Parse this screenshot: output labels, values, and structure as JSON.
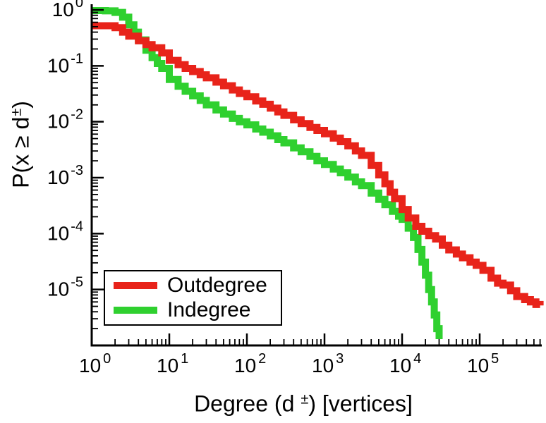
{
  "chart_data": {
    "type": "line",
    "subtype": "ccdf-step-loglog",
    "title": "",
    "xlabel_parts": {
      "pre": "Degree (d",
      "sup": "±",
      "post": ") [vertices]"
    },
    "ylabel_parts": {
      "pre": "P(x ≥ d",
      "sup": "±",
      "post": ")"
    },
    "tick_base": "10",
    "grid": false,
    "x_axis": {
      "scale": "log",
      "log_min": 0,
      "log_max": 5.8,
      "tick_exponents": [
        0,
        1,
        2,
        3,
        4,
        5
      ]
    },
    "y_axis": {
      "scale": "log",
      "log_decades": 6,
      "ylim": [
        1e-06,
        1
      ],
      "tick_exponents": [
        0,
        -1,
        -2,
        -3,
        -4,
        -5
      ]
    },
    "legend": {
      "position": "lower-left"
    },
    "series": [
      {
        "name": "Outdegree",
        "color": "#e8231a",
        "points": [
          [
            1,
            0.52
          ],
          [
            2,
            0.48
          ],
          [
            2.5,
            0.4
          ],
          [
            3,
            0.34
          ],
          [
            4,
            0.28
          ],
          [
            5,
            0.24
          ],
          [
            6,
            0.21
          ],
          [
            8,
            0.17
          ],
          [
            10,
            0.125
          ],
          [
            13,
            0.105
          ],
          [
            16,
            0.09
          ],
          [
            20,
            0.079
          ],
          [
            25,
            0.069
          ],
          [
            30,
            0.061
          ],
          [
            40,
            0.051
          ],
          [
            50,
            0.044
          ],
          [
            65,
            0.037
          ],
          [
            80,
            0.032
          ],
          [
            100,
            0.028
          ],
          [
            130,
            0.0235
          ],
          [
            160,
            0.0205
          ],
          [
            200,
            0.0175
          ],
          [
            250,
            0.015
          ],
          [
            300,
            0.013
          ],
          [
            400,
            0.0108
          ],
          [
            500,
            0.0093
          ],
          [
            650,
            0.0079
          ],
          [
            800,
            0.007
          ],
          [
            1000,
            0.0061
          ],
          [
            1300,
            0.0051
          ],
          [
            1600,
            0.0044
          ],
          [
            2000,
            0.0037
          ],
          [
            2500,
            0.003
          ],
          [
            3000,
            0.0025
          ],
          [
            4000,
            0.00165
          ],
          [
            5000,
            0.00112
          ],
          [
            6000,
            0.00078
          ],
          [
            7000,
            0.00055
          ],
          [
            8000,
            0.00042
          ],
          [
            10000,
            0.00027
          ],
          [
            12000,
            0.00019
          ],
          [
            15000,
            0.000135
          ],
          [
            18000,
            0.00011
          ],
          [
            22000,
            9.2e-05
          ],
          [
            27000,
            8e-05
          ],
          [
            33000,
            6.2e-05
          ],
          [
            40000,
            5.1e-05
          ],
          [
            50000,
            4.3e-05
          ],
          [
            60000,
            3.7e-05
          ],
          [
            75000,
            3.1e-05
          ],
          [
            90000,
            2.7e-05
          ],
          [
            110000,
            2.2e-05
          ],
          [
            140000,
            1.6e-05
          ],
          [
            170000,
            1.3e-05
          ],
          [
            200000,
            1.2e-05
          ],
          [
            250000,
            9.5e-06
          ],
          [
            300000,
            7.5e-06
          ],
          [
            380000,
            6.6e-06
          ],
          [
            450000,
            6e-06
          ],
          [
            530000,
            5.4e-06
          ],
          [
            600000,
            5.2e-06
          ]
        ]
      },
      {
        "name": "Indegree",
        "color": "#2fd02f",
        "points": [
          [
            1,
            0.97
          ],
          [
            1.5,
            0.96
          ],
          [
            2,
            0.9
          ],
          [
            2.5,
            0.74
          ],
          [
            3,
            0.54
          ],
          [
            3.5,
            0.4
          ],
          [
            4,
            0.29
          ],
          [
            5,
            0.19
          ],
          [
            6,
            0.14
          ],
          [
            7,
            0.11
          ],
          [
            8,
            0.09
          ],
          [
            10,
            0.057
          ],
          [
            13,
            0.043
          ],
          [
            16,
            0.035
          ],
          [
            20,
            0.029
          ],
          [
            25,
            0.024
          ],
          [
            30,
            0.02
          ],
          [
            40,
            0.0162
          ],
          [
            50,
            0.0137
          ],
          [
            65,
            0.0115
          ],
          [
            80,
            0.01
          ],
          [
            100,
            0.0088
          ],
          [
            130,
            0.0074
          ],
          [
            160,
            0.0065
          ],
          [
            200,
            0.0056
          ],
          [
            250,
            0.0048
          ],
          [
            300,
            0.0042
          ],
          [
            400,
            0.0034
          ],
          [
            500,
            0.0029
          ],
          [
            650,
            0.0024
          ],
          [
            800,
            0.002
          ],
          [
            1000,
            0.00172
          ],
          [
            1300,
            0.00143
          ],
          [
            1600,
            0.00122
          ],
          [
            2000,
            0.00102
          ],
          [
            2500,
            0.00084
          ],
          [
            3000,
            0.00072
          ],
          [
            4000,
            0.00053
          ],
          [
            5000,
            0.00041
          ],
          [
            6000,
            0.00033
          ],
          [
            7500,
            0.00025
          ],
          [
            9000,
            0.000205
          ],
          [
            10000,
            0.00018
          ],
          [
            12000,
            0.000125
          ],
          [
            14000,
            8.5e-05
          ],
          [
            16000,
            5.2e-05
          ],
          [
            18000,
            3.1e-05
          ],
          [
            20000,
            1.8e-05
          ],
          [
            22000,
            1e-05
          ],
          [
            24000,
            6e-06
          ],
          [
            26000,
            3.5e-06
          ],
          [
            28000,
            2e-06
          ],
          [
            30000,
            1.3e-06
          ]
        ]
      }
    ]
  }
}
